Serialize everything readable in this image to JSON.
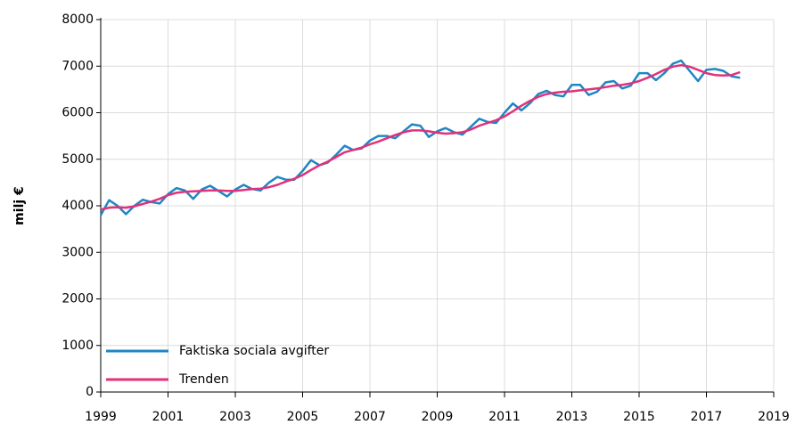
{
  "chart_data": {
    "type": "line",
    "ylabel": "milj €",
    "x": [
      1999,
      1999.25,
      1999.5,
      1999.75,
      2000,
      2000.25,
      2000.5,
      2000.75,
      2001,
      2001.25,
      2001.5,
      2001.75,
      2002,
      2002.25,
      2002.5,
      2002.75,
      2003,
      2003.25,
      2003.5,
      2003.75,
      2004,
      2004.25,
      2004.5,
      2004.75,
      2005,
      2005.25,
      2005.5,
      2005.75,
      2006,
      2006.25,
      2006.5,
      2006.75,
      2007,
      2007.25,
      2007.5,
      2007.75,
      2008,
      2008.25,
      2008.5,
      2008.75,
      2009,
      2009.25,
      2009.5,
      2009.75,
      2010,
      2010.25,
      2010.5,
      2010.75,
      2011,
      2011.25,
      2011.5,
      2011.75,
      2012,
      2012.25,
      2012.5,
      2012.75,
      2013,
      2013.25,
      2013.5,
      2013.75,
      2014,
      2014.25,
      2014.5,
      2014.75,
      2015,
      2015.25,
      2015.5,
      2015.75,
      2016,
      2016.25,
      2016.5,
      2016.75,
      2017,
      2017.25,
      2017.5,
      2017.75,
      2018
    ],
    "series": [
      {
        "name": "Faktiska sociala avgifter",
        "color": "#1f86c4",
        "values": [
          3800,
          4120,
          4000,
          3820,
          4000,
          4130,
          4080,
          4050,
          4250,
          4380,
          4330,
          4150,
          4350,
          4430,
          4320,
          4200,
          4350,
          4450,
          4360,
          4330,
          4500,
          4620,
          4560,
          4560,
          4750,
          4980,
          4870,
          4930,
          5100,
          5290,
          5200,
          5230,
          5400,
          5500,
          5500,
          5450,
          5600,
          5750,
          5720,
          5480,
          5600,
          5670,
          5580,
          5530,
          5700,
          5870,
          5800,
          5780,
          6000,
          6200,
          6050,
          6200,
          6400,
          6470,
          6380,
          6350,
          6600,
          6600,
          6380,
          6450,
          6650,
          6680,
          6520,
          6580,
          6850,
          6850,
          6700,
          6850,
          7050,
          7120,
          6900,
          6680,
          6920,
          6940,
          6900,
          6780,
          6750
        ]
      },
      {
        "name": "Trenden",
        "color": "#e0327a",
        "values": [
          3920,
          3960,
          3970,
          3960,
          3990,
          4040,
          4090,
          4150,
          4230,
          4280,
          4300,
          4310,
          4320,
          4330,
          4330,
          4320,
          4320,
          4340,
          4360,
          4370,
          4400,
          4450,
          4520,
          4580,
          4660,
          4770,
          4870,
          4950,
          5050,
          5150,
          5200,
          5250,
          5320,
          5380,
          5450,
          5520,
          5580,
          5620,
          5620,
          5600,
          5570,
          5550,
          5560,
          5580,
          5640,
          5720,
          5780,
          5840,
          5920,
          6030,
          6150,
          6250,
          6340,
          6400,
          6430,
          6450,
          6460,
          6480,
          6500,
          6520,
          6550,
          6580,
          6600,
          6630,
          6680,
          6750,
          6830,
          6920,
          6990,
          7020,
          6990,
          6920,
          6850,
          6810,
          6800,
          6810,
          6870
        ]
      }
    ],
    "xlim": [
      1999,
      2019
    ],
    "xticks": [
      1999,
      2001,
      2003,
      2005,
      2007,
      2009,
      2011,
      2013,
      2015,
      2017,
      2019
    ],
    "ylim": [
      0,
      8000
    ],
    "yticks": [
      0,
      1000,
      2000,
      3000,
      4000,
      5000,
      6000,
      7000,
      8000
    ],
    "grid": true,
    "legend": "lower left"
  }
}
